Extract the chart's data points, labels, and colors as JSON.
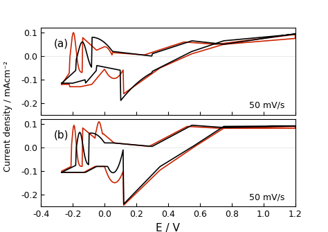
{
  "title": "",
  "xlabel": "E / V",
  "ylabel": "Current density / mAcm⁻²",
  "xlim": [
    -0.4,
    1.2
  ],
  "ylim_a": [
    -0.25,
    0.12
  ],
  "ylim_b": [
    -0.25,
    0.12
  ],
  "xticks": [
    -0.4,
    -0.2,
    0.0,
    0.2,
    0.4,
    0.6,
    0.8,
    1.0,
    1.2
  ],
  "yticks": [
    -0.2,
    -0.1,
    0.0,
    0.1
  ],
  "scan_rate_label": "50 mV/s",
  "label_a": "(a)",
  "label_b": "(b)",
  "black_color": "#000000",
  "red_color": "#cc2200",
  "background_color": "#ffffff",
  "linewidth": 1.2
}
